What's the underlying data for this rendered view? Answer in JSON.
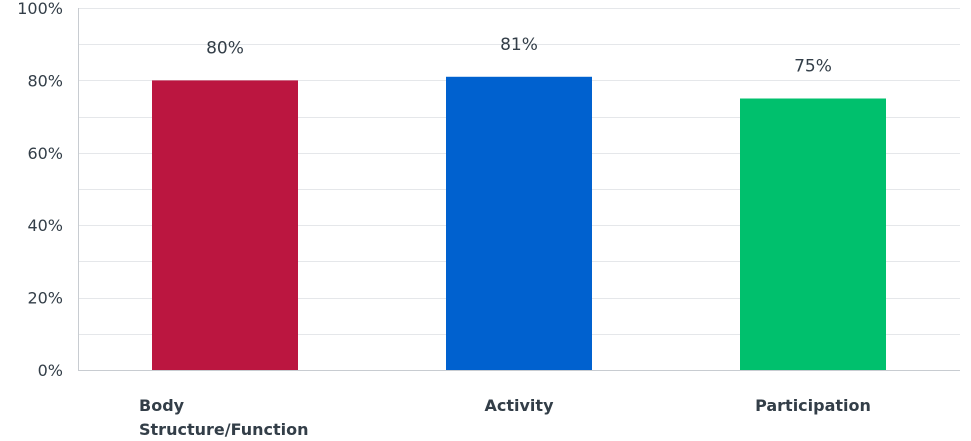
{
  "chart_data": {
    "type": "bar",
    "title": "",
    "xlabel": "",
    "ylabel": "",
    "categories": [
      "Body Structure/Function",
      "Activity",
      "Participation"
    ],
    "category_lines": [
      [
        "Body",
        "Structure/Function"
      ],
      [
        "Activity"
      ],
      [
        "Participation"
      ]
    ],
    "values": [
      80,
      81,
      75
    ],
    "data_labels": [
      "80%",
      "81%",
      "75%"
    ],
    "colors": [
      "#bb1640",
      "#0061cf",
      "#00c06d"
    ],
    "ylim": [
      0,
      100
    ],
    "yticks": [
      0,
      20,
      40,
      60,
      80,
      100
    ],
    "ytick_labels": [
      "0%",
      "20%",
      "40%",
      "60%",
      "80%",
      "100%"
    ],
    "grid": true,
    "legend": "none"
  }
}
